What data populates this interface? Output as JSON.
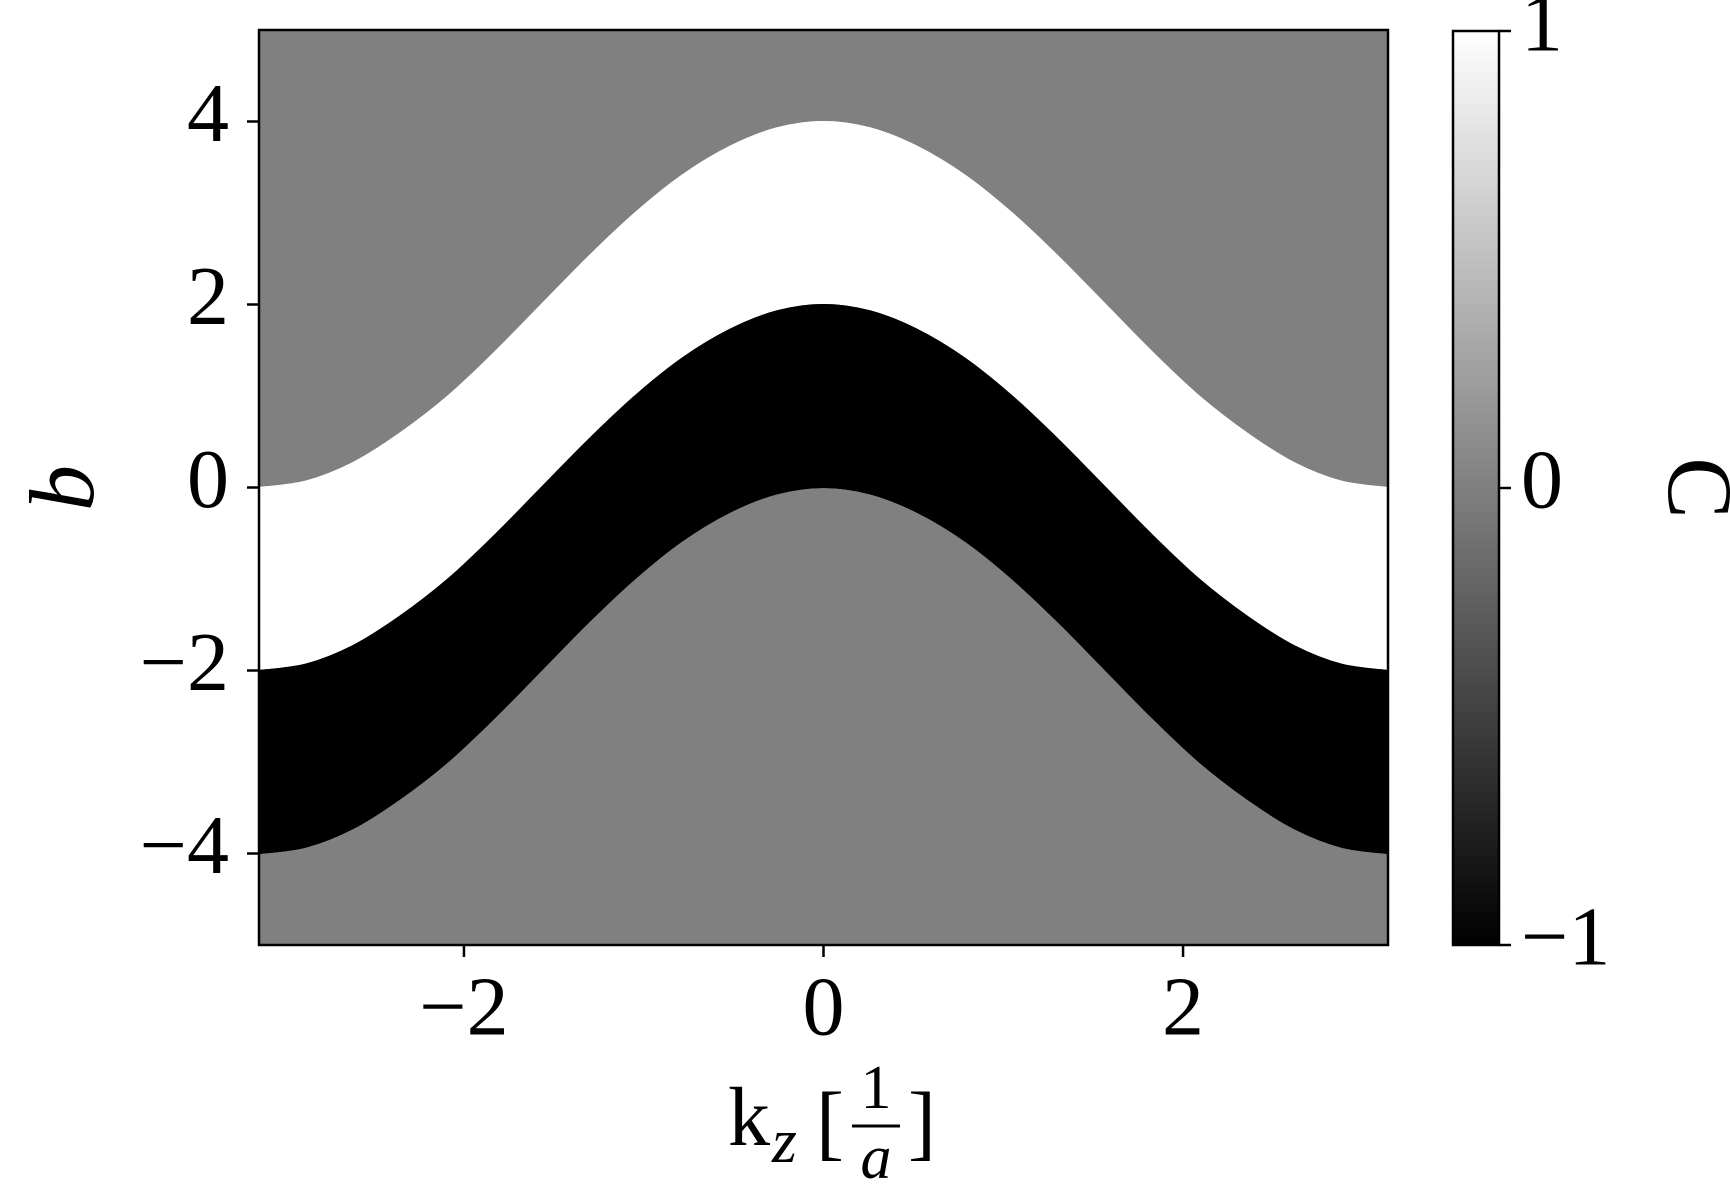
{
  "chart_data": {
    "type": "phase",
    "cmap": "gray",
    "background_value": 0,
    "x": [
      -3.14,
      -2.88,
      -2.62,
      -2.36,
      -2.09,
      -1.83,
      -1.57,
      -1.31,
      -1.05,
      -0.79,
      -0.52,
      -0.26,
      0,
      0.26,
      0.52,
      0.79,
      1.05,
      1.31,
      1.57,
      1.83,
      2.09,
      2.36,
      2.62,
      2.88,
      3.14
    ],
    "bands": [
      {
        "value": 1,
        "upper": [
          0,
          0.07,
          0.27,
          0.59,
          1,
          1.48,
          2,
          2.52,
          3,
          3.41,
          3.73,
          3.93,
          4,
          3.93,
          3.73,
          3.41,
          3,
          2.52,
          2,
          1.48,
          1,
          0.59,
          0.27,
          0.07,
          0
        ],
        "lower": [
          -2,
          -1.93,
          -1.73,
          -1.41,
          -1,
          -0.52,
          0,
          0.52,
          1,
          1.41,
          1.73,
          1.93,
          2,
          1.93,
          1.73,
          1.41,
          1,
          0.52,
          0,
          -0.52,
          -1,
          -1.41,
          -1.73,
          -1.93,
          -2
        ]
      },
      {
        "value": -1,
        "upper": [
          -2,
          -1.93,
          -1.73,
          -1.41,
          -1,
          -0.52,
          0,
          0.52,
          1,
          1.41,
          1.73,
          1.93,
          2,
          1.93,
          1.73,
          1.41,
          1,
          0.52,
          0,
          -0.52,
          -1,
          -1.41,
          -1.73,
          -1.93,
          -2
        ],
        "lower": [
          -4,
          -3.93,
          -3.73,
          -3.41,
          -3,
          -2.52,
          -2,
          -1.48,
          -1,
          -0.59,
          -0.27,
          -0.07,
          0,
          -0.07,
          -0.27,
          -0.59,
          -1,
          -1.48,
          -2,
          -2.52,
          -3,
          -3.41,
          -3.73,
          -3.93,
          -4
        ]
      }
    ],
    "xlim": [
      -3.14,
      3.14
    ],
    "ylim": [
      -5,
      5
    ],
    "xticks": [
      {
        "value": -2,
        "label": "−2"
      },
      0,
      2
    ],
    "yticks": [
      {
        "value": -4,
        "label": "−4"
      },
      {
        "value": -2,
        "label": "−2"
      },
      0,
      2,
      4
    ],
    "y_label": "b",
    "x_label": {
      "base": "k",
      "sub": "z",
      "open": "[",
      "num": "1",
      "den": "a",
      "close": "]"
    },
    "colorbar": {
      "label": "C",
      "lim": [
        -1,
        1
      ],
      "ticks": [
        {
          "value": -1,
          "label": "−1"
        },
        0,
        1
      ]
    }
  }
}
